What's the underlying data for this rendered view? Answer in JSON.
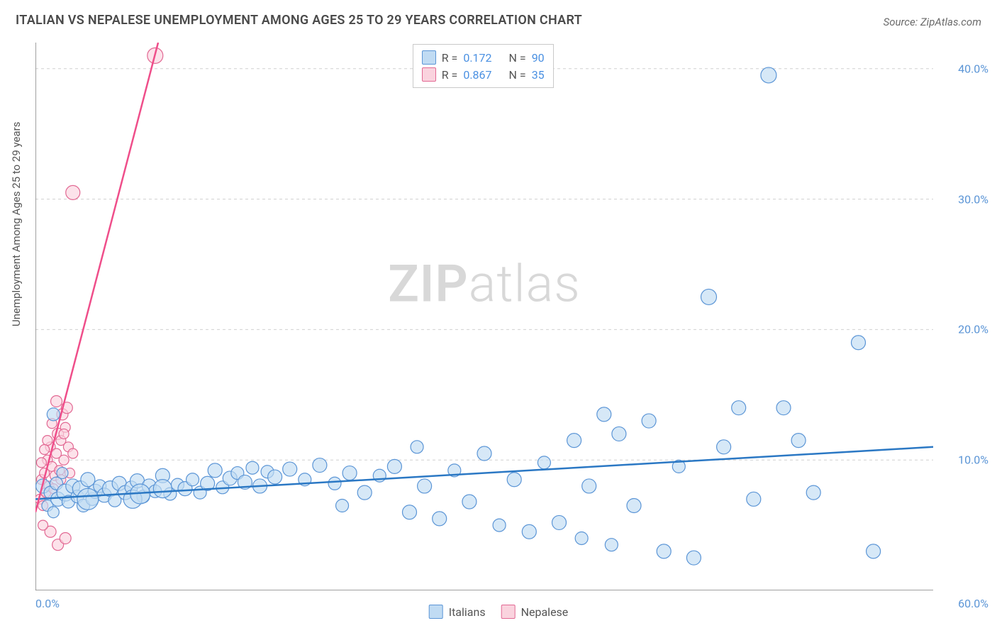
{
  "title": "ITALIAN VS NEPALESE UNEMPLOYMENT AMONG AGES 25 TO 29 YEARS CORRELATION CHART",
  "source": "Source: ZipAtlas.com",
  "y_axis_label": "Unemployment Among Ages 25 to 29 years",
  "watermark_bold": "ZIP",
  "watermark_light": "atlas",
  "chart": {
    "type": "scatter",
    "xlim": [
      0,
      60
    ],
    "ylim": [
      0,
      42
    ],
    "x_ticks_minor": [
      6,
      12,
      18,
      24,
      30,
      36,
      42,
      48,
      54
    ],
    "x_tick_labels": [
      {
        "value": 0,
        "label": "0.0%",
        "pos": "left"
      },
      {
        "value": 60,
        "label": "60.0%",
        "pos": "right"
      }
    ],
    "y_gridlines": [
      10,
      20,
      30,
      40
    ],
    "y_tick_labels": [
      {
        "value": 10,
        "label": "10.0%"
      },
      {
        "value": 20,
        "label": "20.0%"
      },
      {
        "value": 30,
        "label": "30.0%"
      },
      {
        "value": 40,
        "label": "40.0%"
      }
    ],
    "background_color": "#ffffff",
    "grid_color": "#d0d0d0",
    "axis_color": "#808080",
    "series": {
      "italians": {
        "label": "Italians",
        "R": "0.172",
        "N": "90",
        "marker_fill": "#c0dbf3",
        "marker_stroke": "#5b95d6",
        "marker_opacity": 0.65,
        "line_color": "#2b78c4",
        "line_width": 2.5,
        "trend": {
          "x1": 0,
          "y1": 7.0,
          "x2": 60,
          "y2": 11.0
        },
        "points": [
          [
            0.5,
            8.0,
            10
          ],
          [
            0.8,
            6.5,
            8
          ],
          [
            1.0,
            7.5,
            9
          ],
          [
            1.2,
            6.0,
            8
          ],
          [
            1.4,
            8.2,
            9
          ],
          [
            1.5,
            7.0,
            10
          ],
          [
            1.8,
            9.0,
            8
          ],
          [
            2.0,
            7.5,
            12
          ],
          [
            2.2,
            6.8,
            9
          ],
          [
            2.5,
            8.0,
            10
          ],
          [
            2.8,
            7.2,
            9
          ],
          [
            3.0,
            7.8,
            11
          ],
          [
            3.2,
            6.5,
            9
          ],
          [
            3.5,
            8.5,
            10
          ],
          [
            3.8,
            7.0,
            9
          ],
          [
            4.0,
            7.6,
            10
          ],
          [
            4.3,
            8.0,
            9
          ],
          [
            4.6,
            7.3,
            10
          ],
          [
            5.0,
            7.8,
            11
          ],
          [
            5.3,
            6.9,
            9
          ],
          [
            5.6,
            8.2,
            10
          ],
          [
            6.0,
            7.5,
            10
          ],
          [
            6.4,
            7.9,
            9
          ],
          [
            6.8,
            8.4,
            10
          ],
          [
            7.2,
            7.2,
            9
          ],
          [
            7.6,
            8.0,
            10
          ],
          [
            8.0,
            7.6,
            9
          ],
          [
            8.5,
            8.8,
            10
          ],
          [
            9.0,
            7.4,
            9
          ],
          [
            9.5,
            8.1,
            9
          ],
          [
            10.0,
            7.8,
            10
          ],
          [
            10.5,
            8.5,
            9
          ],
          [
            11.0,
            7.5,
            9
          ],
          [
            11.5,
            8.2,
            10
          ],
          [
            12.0,
            9.2,
            10
          ],
          [
            12.5,
            7.9,
            9
          ],
          [
            13.0,
            8.6,
            10
          ],
          [
            13.5,
            9.0,
            9
          ],
          [
            14.0,
            8.3,
            10
          ],
          [
            14.5,
            9.4,
            9
          ],
          [
            15.0,
            8.0,
            10
          ],
          [
            15.5,
            9.1,
            9
          ],
          [
            16.0,
            8.7,
            10
          ],
          [
            17.0,
            9.3,
            10
          ],
          [
            18.0,
            8.5,
            9
          ],
          [
            19.0,
            9.6,
            10
          ],
          [
            20.0,
            8.2,
            9
          ],
          [
            20.5,
            6.5,
            9
          ],
          [
            21.0,
            9.0,
            10
          ],
          [
            22.0,
            7.5,
            10
          ],
          [
            23.0,
            8.8,
            9
          ],
          [
            24.0,
            9.5,
            10
          ],
          [
            25.0,
            6.0,
            10
          ],
          [
            25.5,
            11.0,
            9
          ],
          [
            26.0,
            8.0,
            10
          ],
          [
            27.0,
            5.5,
            10
          ],
          [
            28.0,
            9.2,
            9
          ],
          [
            29.0,
            6.8,
            10
          ],
          [
            30.0,
            10.5,
            10
          ],
          [
            31.0,
            5.0,
            9
          ],
          [
            32.0,
            8.5,
            10
          ],
          [
            33.0,
            4.5,
            10
          ],
          [
            34.0,
            9.8,
            9
          ],
          [
            35.0,
            5.2,
            10
          ],
          [
            36.0,
            11.5,
            10
          ],
          [
            36.5,
            4.0,
            9
          ],
          [
            37.0,
            8.0,
            10
          ],
          [
            38.0,
            13.5,
            10
          ],
          [
            38.5,
            3.5,
            9
          ],
          [
            39.0,
            12.0,
            10
          ],
          [
            40.0,
            6.5,
            10
          ],
          [
            41.0,
            13.0,
            10
          ],
          [
            42.0,
            3.0,
            10
          ],
          [
            43.0,
            9.5,
            9
          ],
          [
            44.0,
            2.5,
            10
          ],
          [
            45.0,
            22.5,
            11
          ],
          [
            46.0,
            11.0,
            10
          ],
          [
            47.0,
            14.0,
            10
          ],
          [
            48.0,
            7.0,
            10
          ],
          [
            49.0,
            39.5,
            11
          ],
          [
            50.0,
            14.0,
            10
          ],
          [
            51.0,
            11.5,
            10
          ],
          [
            52.0,
            7.5,
            10
          ],
          [
            55.0,
            19.0,
            10
          ],
          [
            56.0,
            3.0,
            10
          ],
          [
            1.2,
            13.5,
            9
          ],
          [
            6.5,
            7.0,
            13
          ],
          [
            7.0,
            7.4,
            14
          ],
          [
            3.5,
            7.0,
            15
          ],
          [
            8.5,
            7.8,
            13
          ]
        ]
      },
      "nepalese": {
        "label": "Nepalese",
        "R": "0.867",
        "N": "35",
        "marker_fill": "#fad3de",
        "marker_stroke": "#e26893",
        "marker_opacity": 0.65,
        "line_color": "#ef4e8a",
        "line_width": 2.5,
        "trend": {
          "x1": 0,
          "y1": 6.0,
          "x2": 8.2,
          "y2": 42.0
        },
        "points": [
          [
            0.3,
            7.0,
            7
          ],
          [
            0.4,
            8.5,
            7
          ],
          [
            0.5,
            6.5,
            7
          ],
          [
            0.6,
            9.0,
            7
          ],
          [
            0.7,
            7.5,
            7
          ],
          [
            0.8,
            10.0,
            7
          ],
          [
            0.9,
            8.0,
            7
          ],
          [
            1.0,
            11.0,
            7
          ],
          [
            1.1,
            9.5,
            7
          ],
          [
            1.2,
            7.8,
            7
          ],
          [
            1.3,
            8.8,
            7
          ],
          [
            1.4,
            10.5,
            7
          ],
          [
            1.5,
            12.0,
            8
          ],
          [
            1.6,
            9.2,
            7
          ],
          [
            1.7,
            11.5,
            7
          ],
          [
            1.8,
            13.5,
            8
          ],
          [
            1.9,
            10.0,
            7
          ],
          [
            2.0,
            12.5,
            7
          ],
          [
            2.1,
            14.0,
            8
          ],
          [
            2.2,
            11.0,
            7
          ],
          [
            1.0,
            4.5,
            8
          ],
          [
            1.5,
            3.5,
            8
          ],
          [
            2.0,
            4.0,
            8
          ],
          [
            0.5,
            5.0,
            7
          ],
          [
            0.8,
            11.5,
            7
          ],
          [
            1.1,
            12.8,
            7
          ],
          [
            1.4,
            14.5,
            8
          ],
          [
            2.3,
            9.0,
            7
          ],
          [
            2.5,
            10.5,
            7
          ],
          [
            0.4,
            9.8,
            7
          ],
          [
            0.6,
            10.8,
            7
          ],
          [
            1.7,
            8.5,
            7
          ],
          [
            2.5,
            30.5,
            10
          ],
          [
            8.0,
            41.0,
            11
          ],
          [
            1.9,
            12.0,
            7
          ]
        ]
      }
    }
  },
  "legend_labels": {
    "R": "R  =",
    "N": "N  ="
  },
  "bottom_legend": [
    "Italians",
    "Nepalese"
  ]
}
